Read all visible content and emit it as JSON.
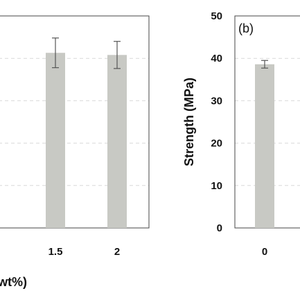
{
  "chart_data": [
    {
      "type": "bar",
      "panel": "a",
      "categories": [
        "1.5",
        "2"
      ],
      "values": [
        41.3,
        40.8
      ],
      "errors": [
        3.5,
        3.2
      ],
      "xlabel": "wt%)",
      "ylabel": "",
      "ylim": [
        0,
        50
      ],
      "grid": "dashed-horizontal",
      "bar_color": "#c8c9c4"
    },
    {
      "type": "bar",
      "panel": "b",
      "panel_label": "(b)",
      "categories": [
        "0"
      ],
      "values": [
        38.6
      ],
      "errors": [
        0.9
      ],
      "xlabel": "",
      "ylabel": "Strength (MPa)",
      "ylim": [
        0,
        50
      ],
      "yticks": [
        "0",
        "10",
        "20",
        "30",
        "40",
        "50"
      ],
      "grid": "dashed-horizontal",
      "bar_color": "#c8c9c4"
    }
  ]
}
